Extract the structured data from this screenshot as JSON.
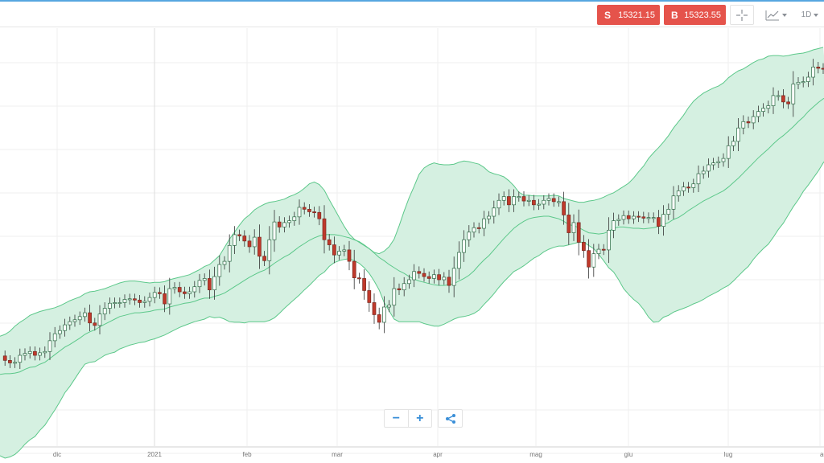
{
  "toolbar": {
    "sell_label": "S",
    "sell_value": "15321.15",
    "buy_label": "B",
    "buy_value": "15323.55",
    "interval": "1D",
    "crosshair_icon": "crosshair-icon",
    "chart_type_icon": "candlestick-chart-icon",
    "colors": {
      "sell": "#e5534b",
      "buy": "#e5534b",
      "accent": "#56a7e0"
    }
  },
  "controls": {
    "zoom_out_label": "−",
    "zoom_in_label": "+",
    "share_icon": "share-icon"
  },
  "chart_data": {
    "type": "candlestick",
    "indicator": "Bollinger Bands",
    "x_tick_labels": [
      "dic",
      "2021",
      "feb",
      "mar",
      "apr",
      "mag",
      "giu",
      "lug",
      "ago"
    ],
    "y_tick_labels": [],
    "grid": true,
    "colors": {
      "up": "#2f9c5a",
      "down": "#c0392b",
      "band_fill": "#d5f0e1",
      "band_line": "#5cc88a"
    },
    "series": [
      {
        "name": "close",
        "values": [
          14.2,
          13.5,
          13.1,
          13.2,
          14.3,
          14.6,
          14.9,
          14.3,
          14.7,
          14.9,
          16.6,
          17.7,
          18.2,
          19.1,
          19.6,
          19.9,
          20.4,
          21.0,
          19.4,
          19.0,
          20.8,
          21.7,
          22.5,
          22.6,
          22.6,
          23.1,
          23.2,
          23.0,
          22.6,
          22.8,
          23.4,
          24.2,
          24.0,
          22.4,
          24.8,
          25.0,
          24.3,
          24.0,
          24.3,
          25.1,
          26.1,
          26.4,
          24.6,
          26.7,
          28.6,
          29.1,
          31.6,
          33.3,
          33.1,
          32.3,
          31.4,
          32.9,
          29.9,
          29.2,
          32.5,
          35.3,
          34.5,
          35.2,
          35.5,
          36.1,
          37.6,
          37.3,
          36.9,
          36.8,
          35.8,
          32.5,
          31.7,
          30.1,
          30.7,
          30.9,
          29.1,
          26.5,
          26.4,
          24.5,
          22.6,
          20.7,
          19.5,
          21.9,
          22.2,
          24.8,
          24.6,
          25.6,
          26.2,
          27.5,
          27.2,
          26.7,
          26.4,
          27.0,
          26.2,
          26.6,
          25.3,
          28.0,
          30.5,
          32.5,
          33.7,
          34.4,
          34.3,
          35.8,
          36.2,
          37.5,
          38.7,
          39.3,
          38.0,
          39.3,
          39.3,
          38.6,
          38.7,
          38.0,
          38.1,
          38.7,
          39.0,
          38.5,
          38.5,
          36.4,
          33.6,
          35.2,
          32.1,
          30.8,
          28.2,
          30.3,
          31.0,
          30.9,
          34.0,
          35.5,
          35.7,
          36.3,
          35.8,
          36.2,
          36.1,
          35.9,
          36.0,
          36.0,
          34.6,
          36.5,
          37.3,
          39.4,
          40.2,
          40.8,
          40.7,
          41.3,
          42.9,
          43.3,
          44.3,
          44.6,
          44.8,
          45.3,
          47.3,
          48.0,
          50.1,
          51.1,
          50.9,
          51.9,
          52.7,
          53.2,
          53.6,
          55.2,
          55.2,
          54.2,
          53.9,
          57.0,
          57.3,
          57.4,
          58.1,
          59.7,
          59.5,
          59.4,
          58.1,
          58.6,
          58.3
        ]
      },
      {
        "name": "middle_band",
        "values": [
          11.3,
          11.4,
          11.4,
          11.5,
          11.7,
          12.1,
          12.4,
          12.5,
          12.9,
          13.2,
          13.8,
          14.4,
          15.0,
          15.6,
          16.0,
          16.5,
          17.0,
          17.6,
          18.0,
          18.3,
          18.8,
          19.2,
          19.6,
          20.0,
          20.4,
          20.6,
          20.8,
          21.0,
          21.0,
          21.1,
          21.2,
          21.4,
          21.5,
          21.6,
          21.9,
          22.1,
          22.3,
          22.5,
          22.6,
          22.8,
          23.1,
          23.3,
          23.3,
          23.6,
          23.8,
          24.1,
          24.6,
          25.1,
          25.6,
          26.1,
          26.6,
          27.0,
          27.4,
          27.7,
          28.2,
          28.8,
          29.3,
          29.8,
          30.2,
          30.8,
          31.4,
          31.9,
          32.4,
          32.8,
          33.1,
          33.3,
          33.3,
          33.3,
          33.2,
          33.0,
          32.8,
          32.5,
          32.2,
          31.7,
          31.1,
          30.4,
          29.7,
          29.2,
          28.6,
          28.1,
          27.6,
          27.2,
          26.7,
          26.3,
          26.0,
          25.8,
          25.6,
          25.4,
          25.3,
          25.3,
          25.4,
          25.6,
          26.0,
          26.4,
          26.9,
          27.6,
          28.5,
          29.3,
          30.0,
          30.9,
          31.8,
          32.7,
          33.5,
          34.3,
          34.9,
          35.4,
          35.8,
          36.0,
          36.1,
          36.2,
          36.2,
          36.0,
          35.8,
          35.4,
          34.9,
          34.7,
          34.4,
          34.0,
          33.6,
          33.5,
          33.4,
          33.5,
          33.8,
          34.3,
          34.5,
          34.5,
          34.4,
          34.3,
          34.3,
          34.2,
          34.3,
          34.4,
          34.6,
          34.9,
          35.2,
          35.7,
          36.0,
          36.5,
          37.1,
          37.6,
          38.1,
          38.6,
          39.0,
          39.4,
          39.8,
          40.2,
          40.8,
          41.5,
          42.2,
          43.0,
          43.8,
          44.6,
          45.4,
          46.1,
          46.8,
          47.6,
          48.3,
          48.9,
          49.6,
          50.3,
          51.1,
          51.8,
          52.7,
          53.4,
          54.1,
          54.7,
          55.1,
          55.5,
          55.9
        ]
      },
      {
        "name": "upper_band",
        "values": [
          17.3,
          17.6,
          18.1,
          18.9,
          19.5,
          20.0,
          20.6,
          20.9,
          21.2,
          21.4,
          21.6,
          21.8,
          22.1,
          22.5,
          22.9,
          23.2,
          23.5,
          24.0,
          24.3,
          24.4,
          24.6,
          24.8,
          25.1,
          25.4,
          25.7,
          25.9,
          26.0,
          26.0,
          25.9,
          25.8,
          25.7,
          25.8,
          25.8,
          25.9,
          26.2,
          26.4,
          26.6,
          26.8,
          27.0,
          27.4,
          27.8,
          28.3,
          28.6,
          29.3,
          30.0,
          31.3,
          32.6,
          33.7,
          34.8,
          35.8,
          36.4,
          37.2,
          37.7,
          38.1,
          38.4,
          38.5,
          38.7,
          38.9,
          39.3,
          39.6,
          40.0,
          40.6,
          41.3,
          41.6,
          41.2,
          40.3,
          38.8,
          37.4,
          36.0,
          34.6,
          33.4,
          32.6,
          32.1,
          31.6,
          31.1,
          30.5,
          30.3,
          30.7,
          31.4,
          32.6,
          34.7,
          37.0,
          39.1,
          40.9,
          42.8,
          43.8,
          44.3,
          44.6,
          44.4,
          44.3,
          44.3,
          44.4,
          44.7,
          44.9,
          44.8,
          44.6,
          44.4,
          43.9,
          43.2,
          42.9,
          42.7,
          42.4,
          41.8,
          41.0,
          40.0,
          39.5,
          39.5,
          39.4,
          39.4,
          39.4,
          39.4,
          39.5,
          39.4,
          39.0,
          38.8,
          38.6,
          38.4,
          38.4,
          38.6,
          38.7,
          38.9,
          39.2,
          39.6,
          39.9,
          40.4,
          40.9,
          41.4,
          42.2,
          43.2,
          44.1,
          45.3,
          46.2,
          47.0,
          47.9,
          48.9,
          50.1,
          51.1,
          52.1,
          53.3,
          54.3,
          55.0,
          55.6,
          56.0,
          56.4,
          56.7,
          57.2,
          58.0,
          58.6,
          59.1,
          59.4,
          59.9,
          60.4,
          60.8,
          61.0,
          61.4,
          61.5,
          61.5,
          61.4,
          61.5,
          61.7,
          61.8,
          61.9,
          62.1,
          62.4,
          62.6,
          62.8
        ]
      },
      {
        "name": "lower_band",
        "values": [
          -1.5,
          -1.9,
          -1.7,
          -1.3,
          -0.6,
          0.3,
          1.0,
          1.5,
          2.5,
          3.3,
          4.5,
          5.7,
          7.0,
          8.4,
          9.4,
          10.6,
          11.8,
          12.9,
          13.2,
          13.3,
          13.8,
          14.3,
          14.6,
          14.8,
          15.3,
          15.6,
          15.9,
          16.1,
          16.3,
          16.4,
          16.7,
          16.9,
          17.2,
          17.5,
          17.9,
          18.3,
          18.7,
          19.0,
          19.3,
          19.6,
          19.8,
          20.0,
          20.4,
          20.2,
          20.3,
          20.0,
          19.6,
          19.5,
          19.5,
          19.4,
          19.6,
          19.6,
          19.6,
          19.6,
          19.8,
          20.2,
          20.9,
          21.7,
          22.4,
          23.1,
          23.8,
          24.6,
          25.3,
          26.1,
          26.9,
          27.4,
          28.3,
          28.9,
          29.2,
          29.4,
          29.5,
          29.2,
          28.8,
          28.1,
          27.2,
          26.0,
          24.6,
          22.6,
          21.3,
          20.0,
          19.6,
          19.6,
          19.6,
          19.6,
          19.6,
          19.3,
          19.1,
          18.9,
          18.9,
          19.2,
          19.6,
          20.0,
          20.3,
          20.4,
          20.6,
          20.9,
          21.4,
          22.3,
          23.1,
          24.0,
          25.0,
          25.9,
          26.7,
          27.5,
          27.9,
          28.4,
          29.0,
          29.6,
          30.0,
          30.6,
          31.0,
          31.3,
          31.5,
          31.5,
          31.7,
          31.9,
          32.1,
          32.1,
          31.6,
          31.1,
          30.2,
          29.2,
          28.1,
          27.4,
          26.2,
          24.8,
          23.9,
          23.1,
          22.5,
          21.5,
          20.3,
          19.5,
          19.6,
          20.3,
          20.6,
          21.1,
          21.4,
          21.7,
          22.0,
          22.4,
          22.7,
          23.1,
          23.6,
          24.0,
          24.4,
          24.9,
          25.3,
          26.0,
          26.8,
          27.6,
          28.3,
          29.4,
          30.3,
          31.1,
          31.8,
          32.9,
          34.1,
          35.1,
          36.4,
          37.7,
          38.8,
          40.1,
          41.1,
          42.2,
          43.3,
          44.6,
          45.6,
          46.5
        ]
      }
    ]
  }
}
